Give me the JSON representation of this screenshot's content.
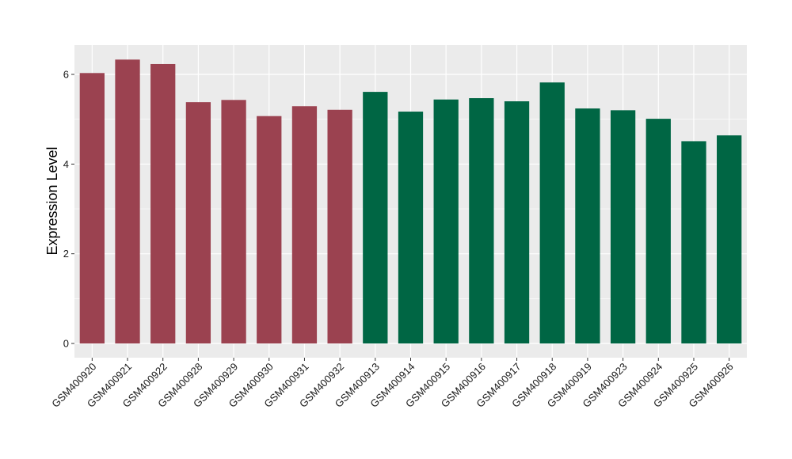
{
  "chart_data": {
    "type": "bar",
    "xlabel": "",
    "ylabel": "Expression Level",
    "ylim": [
      -0.3,
      6.65
    ],
    "yticks": [
      0,
      2,
      4,
      6
    ],
    "grid": true,
    "categories": [
      "GSM400920",
      "GSM400921",
      "GSM400922",
      "GSM400928",
      "GSM400929",
      "GSM400930",
      "GSM400931",
      "GSM400932",
      "GSM400913",
      "GSM400914",
      "GSM400915",
      "GSM400916",
      "GSM400917",
      "GSM400918",
      "GSM400919",
      "GSM400923",
      "GSM400924",
      "GSM400925",
      "GSM400926"
    ],
    "values": [
      6.03,
      6.33,
      6.23,
      5.38,
      5.43,
      5.07,
      5.29,
      5.21,
      5.61,
      5.17,
      5.44,
      5.47,
      5.4,
      5.82,
      5.24,
      5.2,
      5.01,
      4.51,
      4.64
    ],
    "bar_colors": [
      "#9b4250",
      "#9b4250",
      "#9b4250",
      "#9b4250",
      "#9b4250",
      "#9b4250",
      "#9b4250",
      "#9b4250",
      "#006644",
      "#006644",
      "#006644",
      "#006644",
      "#006644",
      "#006644",
      "#006644",
      "#006644",
      "#006644",
      "#006644",
      "#006644"
    ],
    "panel_background": "#ebebeb",
    "gridline_color": "#ffffff"
  }
}
